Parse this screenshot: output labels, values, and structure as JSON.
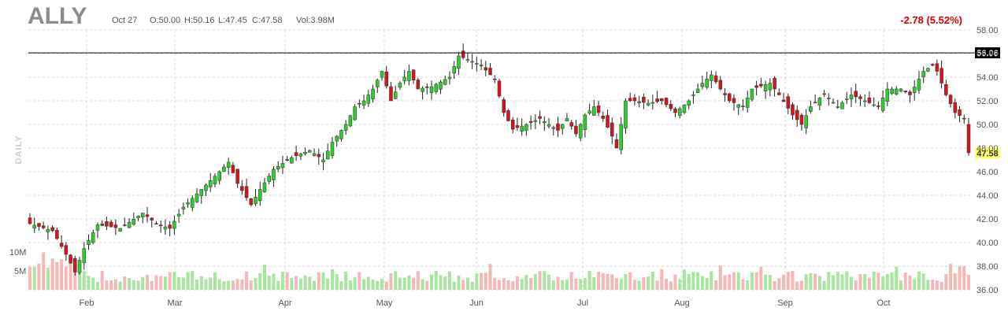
{
  "header": {
    "symbol": "ALLY",
    "date": "Oct 27",
    "open": "O:50.00",
    "high": "H:50.16",
    "low": "L:47.45",
    "close": "C:47.58",
    "volume": "Vol:3.98M",
    "change": "-2.78 (5.52%)",
    "interval": "DAILY"
  },
  "colors": {
    "up": "#2ecc2e",
    "down": "#d4141e",
    "up_volume": "#a8e6a0",
    "down_volume": "#f5b8b8",
    "grid": "#d9d9d9",
    "last_price_bg": "#ffff66"
  },
  "chart_data": {
    "type": "candlestick",
    "ylim": [
      36,
      58
    ],
    "y_ticks": [
      "58.00",
      "56.00",
      "54.00",
      "52.00",
      "50.00",
      "48.00",
      "46.00",
      "44.00",
      "42.00",
      "40.00",
      "38.00",
      "36.00"
    ],
    "x_ticks": [
      "Feb",
      "Mar",
      "Apr",
      "May",
      "Jun",
      "Jul",
      "Aug",
      "Sep",
      "Oct"
    ],
    "volume_labels": [
      "10M",
      "5M"
    ],
    "horizontal_line": {
      "value": 56.06,
      "label": "56.06"
    },
    "last_price": {
      "value": 47.58,
      "label": "47.58"
    },
    "anchors": [
      [
        0,
        41.6
      ],
      [
        5,
        41.0
      ],
      [
        8,
        39.0
      ],
      [
        10,
        37.5
      ],
      [
        12,
        39.5
      ],
      [
        15,
        41.5
      ],
      [
        20,
        41.2
      ],
      [
        25,
        42.5
      ],
      [
        28,
        41.6
      ],
      [
        31,
        41.2
      ],
      [
        34,
        43.0
      ],
      [
        38,
        44.5
      ],
      [
        42,
        46.0
      ],
      [
        44,
        46.8
      ],
      [
        46,
        45.0
      ],
      [
        49,
        43.2
      ],
      [
        51,
        44.5
      ],
      [
        54,
        46.2
      ],
      [
        58,
        47.2
      ],
      [
        62,
        47.8
      ],
      [
        65,
        47.0
      ],
      [
        67,
        48.5
      ],
      [
        70,
        50.0
      ],
      [
        72,
        51.5
      ],
      [
        74,
        52.0
      ],
      [
        76,
        53.0
      ],
      [
        78,
        54.5
      ],
      [
        80,
        52.0
      ],
      [
        82,
        53.5
      ],
      [
        84,
        54.5
      ],
      [
        86,
        53.0
      ],
      [
        89,
        53.2
      ],
      [
        93,
        54.0
      ],
      [
        95,
        55.8
      ],
      [
        97,
        55.5
      ],
      [
        100,
        55.0
      ],
      [
        103,
        53.8
      ],
      [
        105,
        51.0
      ],
      [
        107,
        49.6
      ],
      [
        110,
        50.0
      ],
      [
        113,
        50.5
      ],
      [
        115,
        50.0
      ],
      [
        117,
        49.5
      ],
      [
        119,
        50.5
      ],
      [
        121,
        49.2
      ],
      [
        123,
        50.8
      ],
      [
        125,
        51.5
      ],
      [
        127,
        50.5
      ],
      [
        129,
        49.0
      ],
      [
        130,
        48.0
      ],
      [
        132,
        52.0
      ],
      [
        134,
        52.0
      ],
      [
        137,
        51.8
      ],
      [
        140,
        52.0
      ],
      [
        143,
        51.0
      ],
      [
        146,
        52.0
      ],
      [
        149,
        53.5
      ],
      [
        151,
        54.2
      ],
      [
        153,
        53.0
      ],
      [
        155,
        52.0
      ],
      [
        158,
        51.5
      ],
      [
        160,
        53.0
      ],
      [
        164,
        53.5
      ],
      [
        166,
        52.5
      ],
      [
        169,
        50.8
      ],
      [
        171,
        50.0
      ],
      [
        173,
        51.5
      ],
      [
        176,
        52.6
      ],
      [
        179,
        51.5
      ],
      [
        182,
        52.5
      ],
      [
        185,
        52.0
      ],
      [
        188,
        51.5
      ],
      [
        190,
        53.0
      ],
      [
        193,
        53.0
      ],
      [
        195,
        52.5
      ],
      [
        198,
        54.5
      ],
      [
        200,
        55.0
      ],
      [
        201,
        54.5
      ],
      [
        203,
        52.5
      ],
      [
        205,
        51.0
      ],
      [
        207,
        50.5
      ],
      [
        208,
        47.6
      ]
    ]
  }
}
